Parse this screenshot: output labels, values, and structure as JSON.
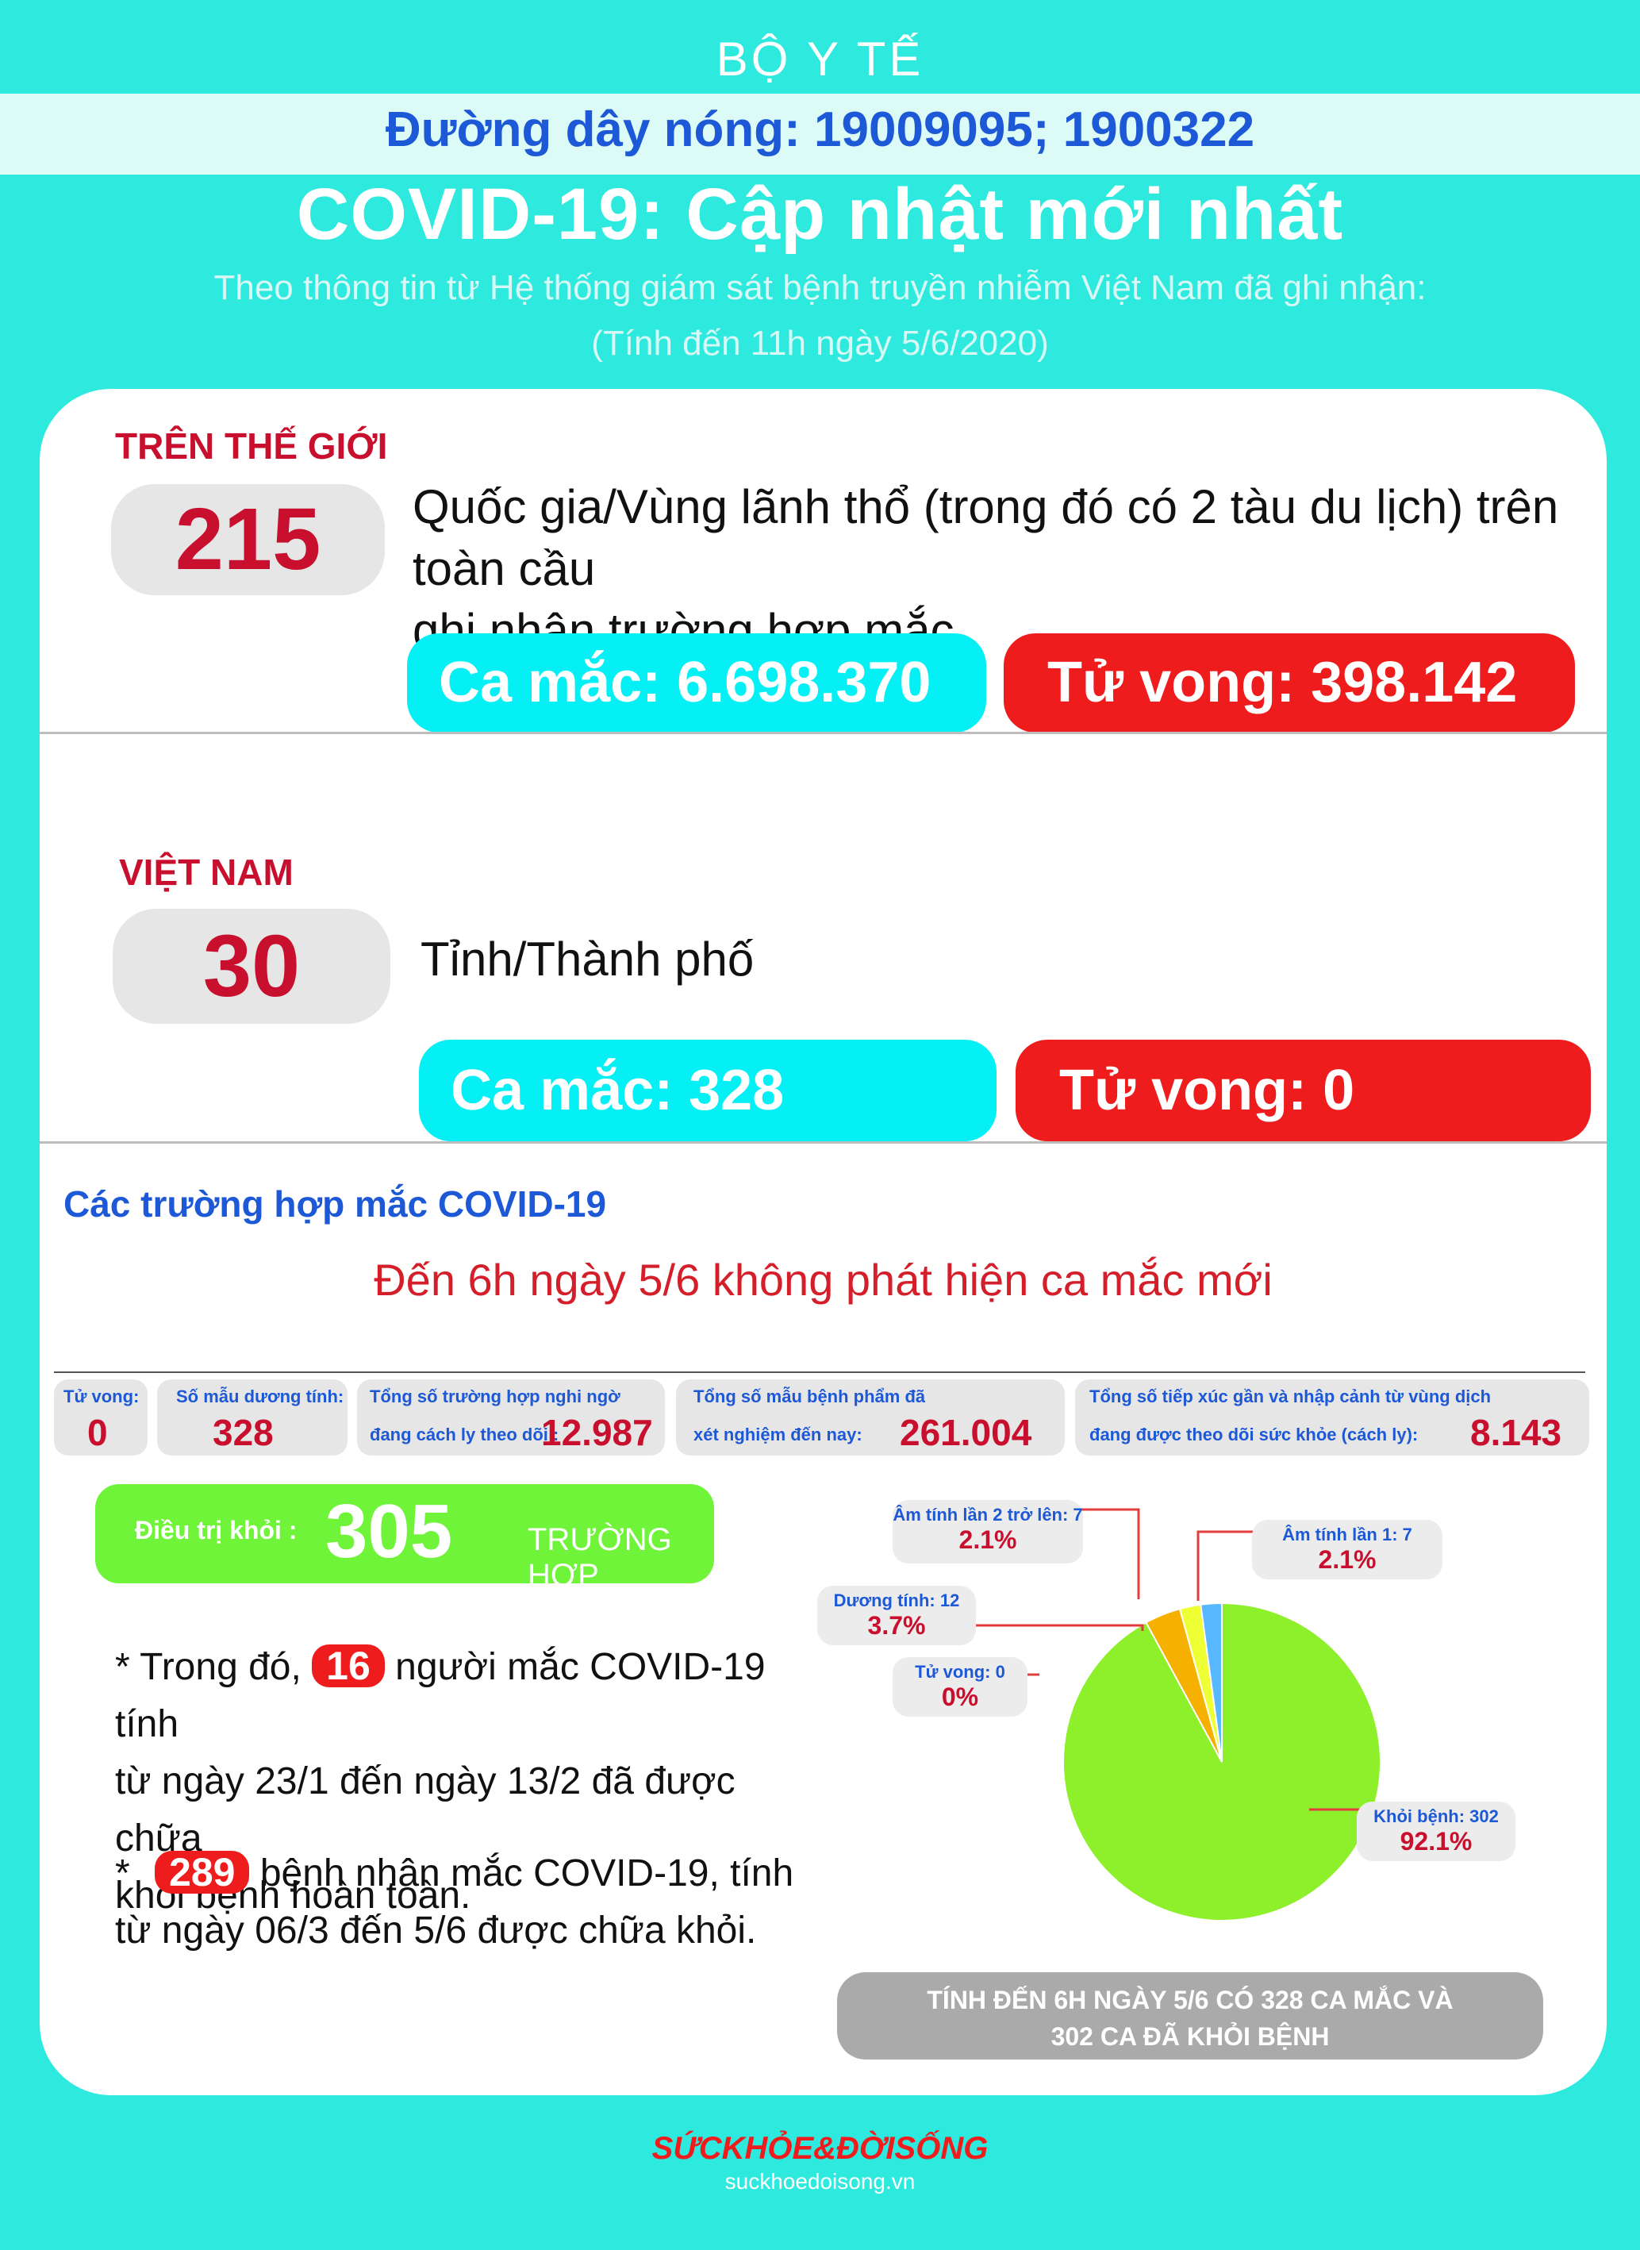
{
  "header": {
    "org": "BỘ Y TẾ",
    "hotline": "Đường dây nóng: 19009095; 1900322",
    "title": "COVID-19: Cập nhật mới nhất",
    "subtitle": "Theo thông tin từ Hệ thống giám sát bệnh truyền nhiễm Việt Nam đã ghi nhận:",
    "as_of": "(Tính đến 11h ngày 5/6/2020)"
  },
  "world": {
    "heading": "TRÊN THẾ GIỚI",
    "count": "215",
    "desc_line1": "Quốc gia/Vùng lãnh thổ (trong đó có 2 tàu du lịch) trên toàn cầu",
    "desc_line2": "ghi nhận trường hợp mắc",
    "cases": "Ca mắc: 6.698.370",
    "deaths": "Tử vong: 398.142"
  },
  "vietnam": {
    "heading": "VIỆT NAM",
    "count": "30",
    "desc": "Tỉnh/Thành phố",
    "cases": "Ca mắc: 328",
    "deaths": "Tử vong:  0"
  },
  "cases_section": {
    "title": "Các trường hợp mắc COVID-19",
    "no_new": "Đến 6h ngày 5/6 không phát hiện ca mắc mới"
  },
  "stats": [
    {
      "label": "Tử vong:",
      "label2": "",
      "value": "0"
    },
    {
      "label": "Số mẫu dương tính:",
      "label2": "",
      "value": "328"
    },
    {
      "label": "Tổng số trường hợp nghi ngờ",
      "label2": "đang cách ly theo dõi :",
      "value": "12.987"
    },
    {
      "label": "Tổng số mẫu bệnh phẩm đã",
      "label2": "xét nghiệm đến nay:",
      "value": "261.004"
    },
    {
      "label": "Tổng số tiếp xúc gần và nhập cảnh từ vùng dịch",
      "label2": "đang được theo dõi sức khỏe (cách ly):",
      "value": "8.143"
    }
  ],
  "recovered": {
    "label": "Điều trị khỏi :",
    "value": "305",
    "unit": "TRƯỜNG HỢP"
  },
  "notes": {
    "n1_prefix": "* Trong đó,",
    "n1_badge": "16",
    "n1_rest1": "người mắc COVID-19 tính",
    "n1_line2": "từ ngày 23/1 đến ngày 13/2 đã được chữa",
    "n1_line3": "khỏi bệnh hoàn toàn.",
    "n2_prefix": "*",
    "n2_badge": "289",
    "n2_rest1": "bệnh nhân  mắc COVID-19, tính",
    "n2_line2": "từ ngày 06/3 đến 5/6 được chữa khỏi."
  },
  "chart_data": {
    "type": "pie",
    "slices": [
      {
        "name": "Khỏi bệnh: 302",
        "value": 302,
        "percent": "92.1%",
        "color": "#8ef02a"
      },
      {
        "name": "Dương tính: 12",
        "value": 12,
        "percent": "3.7%",
        "color": "#f5b000"
      },
      {
        "name": "Âm tính lần 2 trở lên: 7",
        "value": 7,
        "percent": "2.1%",
        "color": "#eeff33"
      },
      {
        "name": "Âm tính lần 1: 7",
        "value": 7,
        "percent": "2.1%",
        "color": "#57b8ff"
      },
      {
        "name": "Tử vong: 0",
        "value": 0,
        "percent": "0%",
        "color": "#ee1c1c"
      }
    ]
  },
  "summary": {
    "line1": "TÍNH ĐẾN 6H NGÀY 5/6 CÓ 328 CA MẮC VÀ",
    "line2": "302  CA ĐÃ KHỎI BỆNH"
  },
  "brand": {
    "name": "SỨCKHỎE&ĐỜISỐNG",
    "url": "suckhoedoisong.vn"
  },
  "colors": {
    "background": "#2ee9de",
    "accent_red": "#ee1c1c",
    "accent_cyan": "#05f0f4",
    "accent_blue": "#1d59d6",
    "recovered_green": "#6ff43a"
  }
}
